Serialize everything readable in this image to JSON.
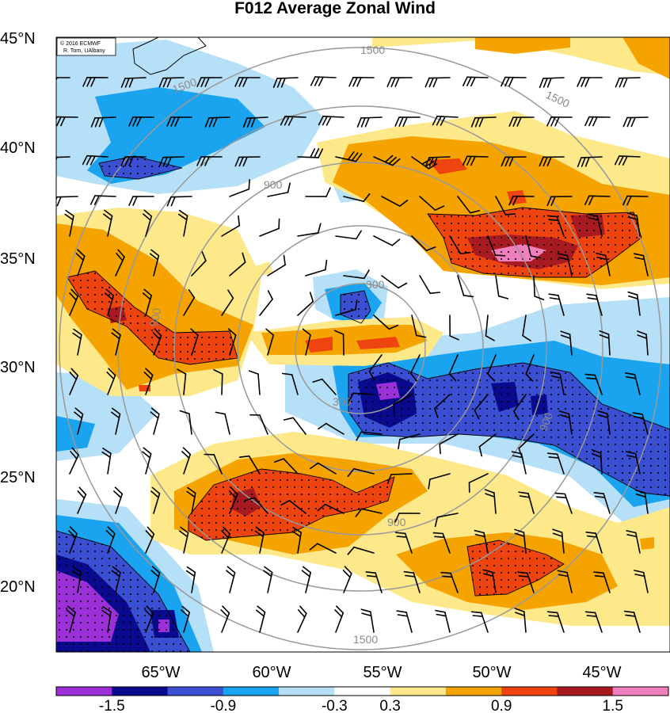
{
  "title": "F012 Average Zonal Wind",
  "credit": {
    "line1": "© 2016 ECMWF",
    "line2": "R. Torn, UAlbany"
  },
  "lat_labels": [
    "45°N",
    "40°N",
    "35°N",
    "30°N",
    "25°N",
    "20°N"
  ],
  "lon_labels": [
    "65°W",
    "60°W",
    "55°W",
    "50°W",
    "45°W"
  ],
  "range_ring_labels": [
    "300",
    "300",
    "900",
    "900",
    "900",
    "900",
    "1500",
    "1500",
    "1500",
    "1500"
  ],
  "colorbar": {
    "colors": [
      "#9b30d9",
      "#0a0a8e",
      "#3a4fd1",
      "#1aa3ee",
      "#b6e0f8",
      "#ffffff",
      "#fde88a",
      "#f5a300",
      "#ee4510",
      "#a81a22",
      "#f07fbd"
    ],
    "labels": [
      "-1.5",
      "-0.9",
      "-0.3",
      "0.3",
      "0.9",
      "1.5"
    ]
  },
  "colors": {
    "contour_ring": "#999999",
    "barb": "#000000"
  }
}
